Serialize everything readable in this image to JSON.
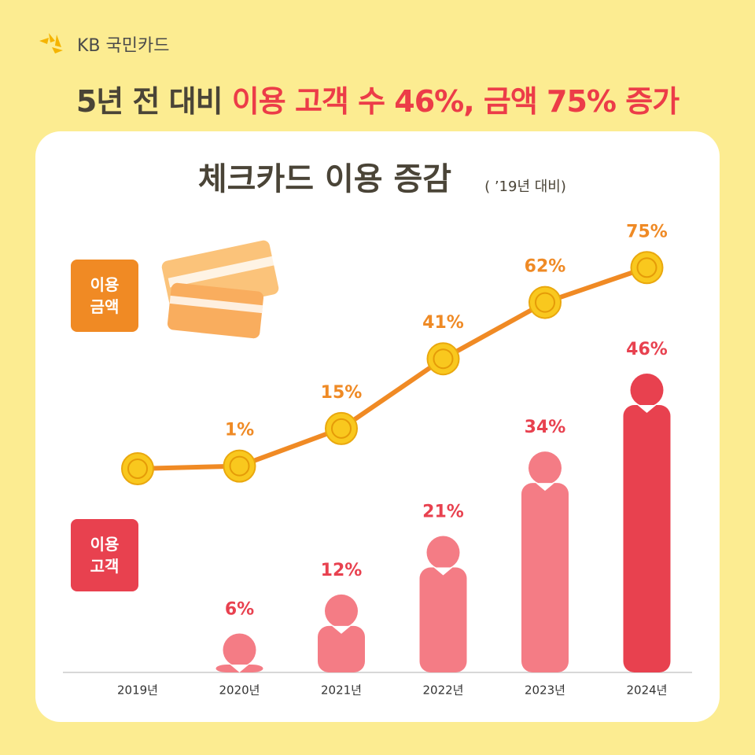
{
  "header": {
    "brand": "KB 국민카드",
    "headline_lead": "5년 전 대비",
    "headline_highlight": "이용 고객 수 46%, 금액 75% 증가"
  },
  "chart_data": {
    "type": "combo",
    "title": "체크카드 이용 증감",
    "subtitle": "( ’19년 대비)",
    "categories": [
      "2019년",
      "2020년",
      "2021년",
      "2022년",
      "2023년",
      "2024년"
    ],
    "series": [
      {
        "name": "이용\n금액",
        "type": "line",
        "color": "#f08a24",
        "label_color": "#ef8a25",
        "values": [
          0,
          1,
          15,
          41,
          62,
          75
        ],
        "value_labels": [
          null,
          "1%",
          "15%",
          "41%",
          "62%",
          "75%"
        ]
      },
      {
        "name": "이용\n고객",
        "type": "bar",
        "color": "#f47c85",
        "highlight_color": "#e8414f",
        "label_color": "#e8414f",
        "values": [
          0,
          6,
          12,
          21,
          34,
          46
        ],
        "value_labels": [
          null,
          "6%",
          "12%",
          "21%",
          "34%",
          "46%"
        ]
      }
    ]
  }
}
